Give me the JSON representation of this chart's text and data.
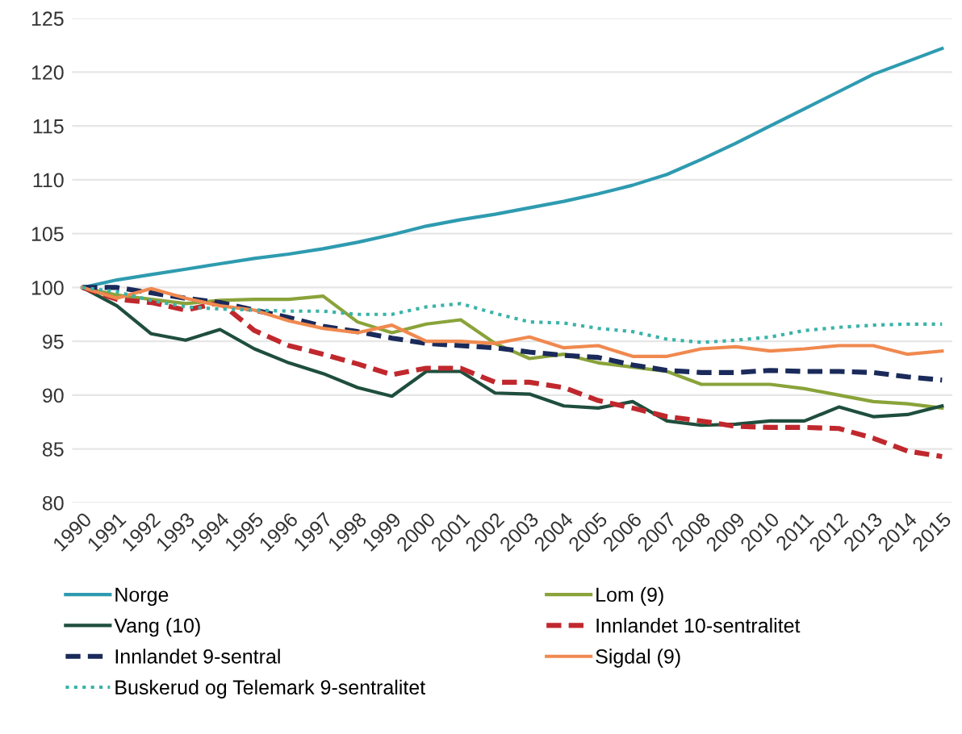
{
  "chart_data": {
    "type": "line",
    "categories": [
      "1990",
      "1991",
      "1992",
      "1993",
      "1994",
      "1995",
      "1996",
      "1997",
      "1998",
      "1999",
      "2000",
      "2001",
      "2002",
      "2003",
      "2004",
      "2005",
      "2006",
      "2007",
      "2008",
      "2009",
      "2010",
      "2011",
      "2012",
      "2013",
      "2014",
      "2015"
    ],
    "series": [
      {
        "name": "Norge",
        "color": "#2e9bb0",
        "line_style": "solid",
        "values": [
          100,
          100.7,
          101.2,
          101.7,
          102.2,
          102.7,
          103.1,
          103.6,
          104.2,
          104.9,
          105.7,
          106.3,
          106.8,
          107.4,
          108.0,
          108.7,
          109.5,
          110.5,
          111.9,
          113.4,
          115.0,
          116.6,
          118.2,
          119.8,
          121.0,
          122.2
        ]
      },
      {
        "name": "Lom (9)",
        "color": "#8aa33a",
        "line_style": "solid",
        "values": [
          100,
          99.3,
          98.9,
          98.5,
          98.8,
          98.9,
          98.9,
          99.2,
          96.8,
          95.8,
          96.6,
          97.0,
          94.8,
          93.4,
          93.8,
          93.0,
          92.6,
          92.2,
          91.0,
          91.0,
          91.0,
          90.6,
          90.0,
          89.4,
          89.2,
          88.8
        ]
      },
      {
        "name": "Vang (10)",
        "color": "#1f4e3d",
        "line_style": "solid",
        "values": [
          100,
          98.3,
          95.7,
          95.1,
          96.1,
          94.3,
          93.0,
          92.0,
          90.7,
          89.9,
          92.2,
          92.2,
          90.2,
          90.1,
          89.0,
          88.8,
          89.4,
          87.6,
          87.2,
          87.3,
          87.6,
          87.6,
          88.9,
          88.0,
          88.2,
          89.0
        ]
      },
      {
        "name": "Innlandet 10-sentralitet",
        "color": "#c0282d",
        "line_style": "dashed",
        "values": [
          100,
          98.9,
          98.6,
          97.9,
          98.6,
          96.0,
          94.6,
          93.8,
          92.9,
          91.9,
          92.5,
          92.5,
          91.2,
          91.2,
          90.7,
          89.5,
          88.8,
          88.0,
          87.6,
          87.1,
          87.0,
          87.0,
          86.9,
          86.0,
          84.8,
          84.3
        ]
      },
      {
        "name": "Innlandet 9-sentral",
        "color": "#1a2a5a",
        "line_style": "dashed",
        "values": [
          100,
          100.0,
          99.5,
          99.0,
          98.6,
          97.9,
          97.2,
          96.4,
          95.9,
          95.3,
          94.8,
          94.6,
          94.4,
          94.0,
          93.7,
          93.5,
          92.8,
          92.3,
          92.1,
          92.1,
          92.3,
          92.2,
          92.2,
          92.1,
          91.7,
          91.4
        ]
      },
      {
        "name": "Sigdal (9)",
        "color": "#f0894f",
        "line_style": "solid",
        "values": [
          100,
          99.0,
          99.9,
          99.0,
          98.3,
          97.9,
          96.9,
          96.2,
          95.8,
          96.5,
          95.0,
          95.0,
          94.8,
          95.4,
          94.4,
          94.6,
          93.6,
          93.6,
          94.3,
          94.5,
          94.1,
          94.3,
          94.6,
          94.6,
          93.8,
          94.1
        ]
      },
      {
        "name": "Buskerud og Telemark 9-sentralitet",
        "color": "#3bb3a8",
        "line_style": "dotted",
        "values": [
          100,
          99.6,
          98.8,
          98.2,
          98.0,
          97.9,
          97.8,
          97.8,
          97.5,
          97.5,
          98.2,
          98.5,
          97.6,
          96.8,
          96.7,
          96.2,
          95.9,
          95.2,
          94.9,
          95.1,
          95.4,
          96.0,
          96.3,
          96.5,
          96.6,
          96.6
        ]
      }
    ],
    "ylim": [
      80,
      125
    ],
    "yticks": [
      80,
      85,
      90,
      95,
      100,
      105,
      110,
      115,
      120,
      125
    ],
    "grid": "y",
    "legend": "bottom",
    "marker": "none"
  }
}
